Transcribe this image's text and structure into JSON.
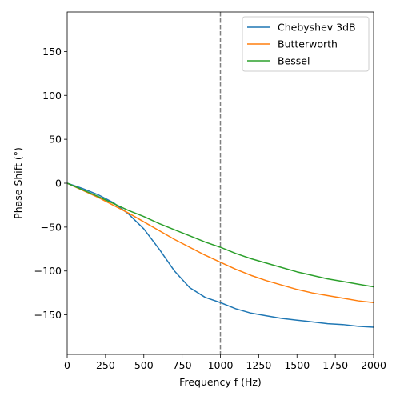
{
  "chart_data": {
    "type": "line",
    "xlabel": "Frequency f (Hz)",
    "ylabel": "Phase Shift (°)",
    "xlim": [
      0,
      2000
    ],
    "ylim": [
      -195,
      195
    ],
    "x_ticks": [
      0,
      250,
      500,
      750,
      1000,
      1250,
      1500,
      1750,
      2000
    ],
    "x_tick_labels": [
      "0",
      "250",
      "500",
      "750",
      "1000",
      "1250",
      "1500",
      "1750",
      "2000"
    ],
    "y_ticks": [
      -150,
      -100,
      -50,
      0,
      50,
      100,
      150
    ],
    "y_tick_labels": [
      "−150",
      "−100",
      "−50",
      "0",
      "50",
      "100",
      "150"
    ],
    "grid": false,
    "legend_position": "top-right",
    "vline": {
      "x": 1000,
      "style": "dashed",
      "color": "#808080"
    },
    "series": [
      {
        "name": "Chebyshev 3dB",
        "color": "#1f77b4",
        "x": [
          0,
          100,
          200,
          300,
          400,
          500,
          600,
          700,
          800,
          900,
          1000,
          1100,
          1200,
          1300,
          1400,
          1500,
          1600,
          1700,
          1800,
          1900,
          2000
        ],
        "y": [
          0,
          -6,
          -13,
          -22,
          -35,
          -52,
          -75,
          -100,
          -119,
          -130,
          -136,
          -143,
          -148,
          -151,
          -154,
          -156,
          -158,
          -160,
          -161,
          -163,
          -164
        ]
      },
      {
        "name": "Butterworth",
        "color": "#ff7f0e",
        "x": [
          0,
          100,
          200,
          300,
          400,
          500,
          600,
          700,
          800,
          900,
          1000,
          1100,
          1200,
          1300,
          1400,
          1500,
          1600,
          1700,
          1800,
          1900,
          2000
        ],
        "y": [
          0,
          -8,
          -16,
          -25,
          -34,
          -44,
          -54,
          -64,
          -73,
          -82,
          -90,
          -98,
          -105,
          -111,
          -116,
          -121,
          -125,
          -128,
          -131,
          -134,
          -136
        ]
      },
      {
        "name": "Bessel",
        "color": "#2ca02c",
        "x": [
          0,
          100,
          200,
          300,
          400,
          500,
          600,
          700,
          800,
          900,
          1000,
          1100,
          1200,
          1300,
          1400,
          1500,
          1600,
          1700,
          1800,
          1900,
          2000
        ],
        "y": [
          0,
          -7.5,
          -15,
          -23,
          -31,
          -38,
          -46,
          -53,
          -60,
          -67,
          -73,
          -80,
          -86,
          -91,
          -96,
          -101,
          -105,
          -109,
          -112,
          -115,
          -118
        ]
      }
    ]
  }
}
